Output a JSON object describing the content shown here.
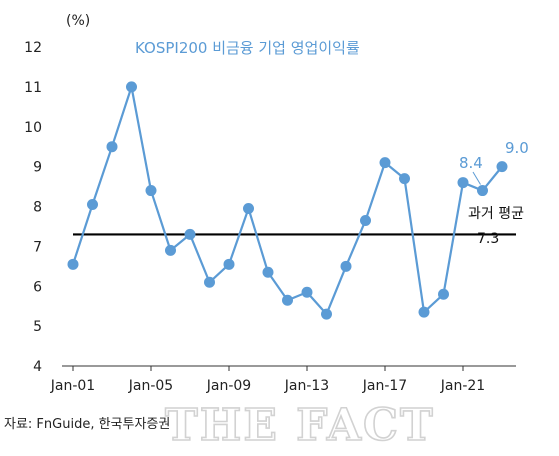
{
  "chart_data": {
    "type": "line",
    "title": "KOSPI200 비금융 기업 영업이익률",
    "unit_label": "(%)",
    "ylim": [
      4,
      12
    ],
    "y_ticks": [
      "4",
      "5",
      "6",
      "7",
      "8",
      "9",
      "10",
      "11",
      "12"
    ],
    "x_tick_labels": [
      "Jan-01",
      "Jan-05",
      "Jan-09",
      "Jan-13",
      "Jan-17",
      "Jan-21"
    ],
    "grid": false,
    "series": [
      {
        "color": "#5b9bd5",
        "x": [
          "2001",
          "2002",
          "2003",
          "2004",
          "2005",
          "2006",
          "2007",
          "2008",
          "2009",
          "2010",
          "2011",
          "2012",
          "2013",
          "2014",
          "2015",
          "2016",
          "2017",
          "2018",
          "2019",
          "2020",
          "2021",
          "2022",
          "2023"
        ],
        "values": [
          6.55,
          8.05,
          9.5,
          11.0,
          8.4,
          6.9,
          7.3,
          6.1,
          6.55,
          7.95,
          6.35,
          5.65,
          5.85,
          5.3,
          6.5,
          7.65,
          9.1,
          8.7,
          5.35,
          5.8,
          8.6,
          8.4,
          9.0
        ]
      }
    ],
    "annotations": [
      {
        "text": "8.4",
        "x": "2022"
      },
      {
        "text": "9.0",
        "x": "2023"
      }
    ],
    "reference_line": {
      "value": 7.3,
      "label": "과거 평균",
      "value_label": "7.3",
      "color": "#000000"
    }
  },
  "source_note": "자료: FnGuide, 한국투자증권",
  "watermark": "THE FACT"
}
